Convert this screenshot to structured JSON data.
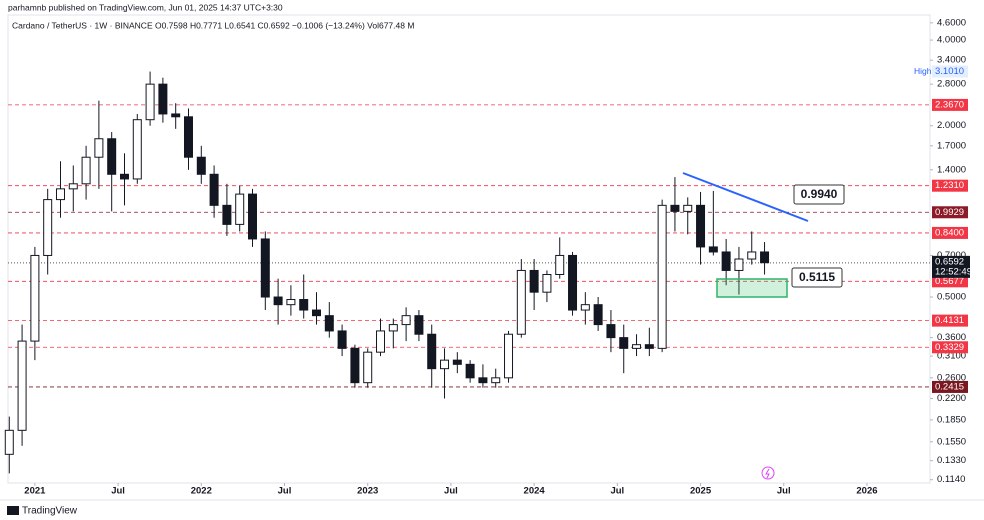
{
  "chart_data": {
    "type": "candlestick",
    "publisher_line": "parhamnb published on TradingView.com, Jun 01, 2025 14:37 UTC+3:30",
    "symbol_line": "Cardano / TetherUS · 1W · BINANCE  O0.7598  H0.7771  L0.6541  C0.6592  −0.1006 (−13.24%)  Vol677.48 M",
    "footer": "TradingView",
    "log_scale": true,
    "up_color": "#ffffff",
    "down_color": "#131722",
    "x": [
      -8,
      -4,
      0,
      4,
      8,
      12,
      16,
      20,
      24,
      28,
      32,
      36,
      40,
      44,
      48,
      52,
      56,
      60,
      64,
      68,
      72,
      76,
      80,
      84,
      88,
      92,
      96,
      100,
      104,
      108,
      112,
      116,
      120,
      124,
      128,
      132,
      136,
      140,
      144,
      148,
      152,
      156,
      160,
      164,
      168,
      172,
      176,
      180,
      184,
      188,
      192,
      196,
      200,
      204,
      208,
      212,
      216,
      220,
      224,
      228
    ],
    "open": [
      0.14,
      0.17,
      0.35,
      0.7,
      1.1,
      1.2,
      1.25,
      1.55,
      1.8,
      1.35,
      1.3,
      2.1,
      2.8,
      2.2,
      2.15,
      1.55,
      1.35,
      1.05,
      0.9,
      1.15,
      0.8,
      0.5,
      0.47,
      0.49,
      0.45,
      0.43,
      0.38,
      0.33,
      0.25,
      0.32,
      0.38,
      0.4,
      0.43,
      0.37,
      0.28,
      0.3,
      0.29,
      0.26,
      0.25,
      0.26,
      0.37,
      0.62,
      0.52,
      0.6,
      0.7,
      0.45,
      0.47,
      0.4,
      0.36,
      0.33,
      0.34,
      0.33,
      1.05,
      1.0,
      1.05,
      0.75,
      0.72,
      0.62,
      0.68,
      0.72
    ],
    "high": [
      0.19,
      0.4,
      0.75,
      1.2,
      1.5,
      1.45,
      1.7,
      2.45,
      1.9,
      1.6,
      2.2,
      3.1,
      2.95,
      2.4,
      2.3,
      1.7,
      1.45,
      1.25,
      1.23,
      1.2,
      0.85,
      0.58,
      0.55,
      0.6,
      0.52,
      0.48,
      0.4,
      0.34,
      0.33,
      0.42,
      0.42,
      0.46,
      0.45,
      0.4,
      0.33,
      0.32,
      0.3,
      0.29,
      0.28,
      0.38,
      0.68,
      0.68,
      0.62,
      0.81,
      0.72,
      0.52,
      0.5,
      0.45,
      0.4,
      0.37,
      0.39,
      1.1,
      1.32,
      1.12,
      1.17,
      1.18,
      0.8,
      0.75,
      0.85,
      0.78
    ],
    "low": [
      0.12,
      0.15,
      0.3,
      0.6,
      0.95,
      1.0,
      1.1,
      1.2,
      1.0,
      1.05,
      1.25,
      2.0,
      2.05,
      1.95,
      1.4,
      1.25,
      0.95,
      0.82,
      0.85,
      0.75,
      0.45,
      0.4,
      0.43,
      0.42,
      0.4,
      0.36,
      0.31,
      0.24,
      0.24,
      0.31,
      0.33,
      0.35,
      0.35,
      0.24,
      0.22,
      0.27,
      0.25,
      0.24,
      0.24,
      0.25,
      0.36,
      0.45,
      0.48,
      0.58,
      0.43,
      0.4,
      0.38,
      0.32,
      0.27,
      0.31,
      0.31,
      0.32,
      0.85,
      0.83,
      0.65,
      0.7,
      0.55,
      0.51,
      0.65,
      0.6
    ],
    "close": [
      0.17,
      0.35,
      0.7,
      1.1,
      1.2,
      1.25,
      1.55,
      1.8,
      1.35,
      1.3,
      2.1,
      2.8,
      2.2,
      2.15,
      1.55,
      1.35,
      1.05,
      0.9,
      1.15,
      0.8,
      0.5,
      0.47,
      0.49,
      0.45,
      0.43,
      0.38,
      0.33,
      0.25,
      0.32,
      0.38,
      0.4,
      0.43,
      0.37,
      0.28,
      0.3,
      0.29,
      0.26,
      0.25,
      0.26,
      0.37,
      0.62,
      0.52,
      0.6,
      0.7,
      0.45,
      0.47,
      0.4,
      0.36,
      0.33,
      0.34,
      0.33,
      1.05,
      1.0,
      1.05,
      0.75,
      0.72,
      0.62,
      0.68,
      0.72,
      0.66
    ],
    "xlim": [
      -8.4,
      279.7
    ],
    "xticks": [
      {
        "value": 0,
        "label": "2021"
      },
      {
        "value": 26,
        "label": "Jul"
      },
      {
        "value": 52,
        "label": "2022"
      },
      {
        "value": 78,
        "label": "Jul"
      },
      {
        "value": 104,
        "label": "2023"
      },
      {
        "value": 130,
        "label": "Jul"
      },
      {
        "value": 156,
        "label": "2024"
      },
      {
        "value": 182,
        "label": "Jul"
      },
      {
        "value": 208,
        "label": "2025"
      },
      {
        "value": 234,
        "label": "Jul"
      },
      {
        "value": 260,
        "label": "2026"
      }
    ],
    "ylim": [
      0.111,
      4.9
    ],
    "yticks": [
      {
        "value": 4.6,
        "label": "4.6000"
      },
      {
        "value": 4,
        "label": "4.0000"
      },
      {
        "value": 3.4,
        "label": "3.4000"
      },
      {
        "value": 2.8,
        "label": "2.8000"
      },
      {
        "value": 2,
        "label": "2.0000"
      },
      {
        "value": 1.7,
        "label": "1.7000"
      },
      {
        "value": 1.4,
        "label": "1.4000"
      },
      {
        "value": 0.7,
        "label": "0.7000"
      },
      {
        "value": 0.5,
        "label": "0.5000"
      },
      {
        "value": 0.36,
        "label": "0.3600"
      },
      {
        "value": 0.31,
        "label": "0.3100"
      },
      {
        "value": 0.26,
        "label": "0.2600"
      },
      {
        "value": 0.22,
        "label": "0.2200"
      },
      {
        "value": 0.185,
        "label": "0.1850"
      },
      {
        "value": 0.155,
        "label": "0.1550"
      },
      {
        "value": 0.133,
        "label": "0.1330"
      },
      {
        "value": 0.114,
        "label": "0.1140"
      }
    ],
    "levels": [
      {
        "value": 2.367,
        "label": "2.3670",
        "color": "#f23645"
      },
      {
        "value": 1.231,
        "label": "1.2310",
        "color": "#f23645"
      },
      {
        "value": 0.9929,
        "label": "0.9929",
        "color": "#8c1a27"
      },
      {
        "value": 0.84,
        "label": "0.8400",
        "color": "#f23645"
      },
      {
        "value": 0.5677,
        "label": "0.5677",
        "color": "#f23645"
      },
      {
        "value": 0.4131,
        "label": "0.4131",
        "color": "#f23645"
      },
      {
        "value": 0.3329,
        "label": "0.3329",
        "color": "#f23645"
      },
      {
        "value": 0.2415,
        "label": "0.2415",
        "color": "#7a1820"
      }
    ],
    "current_price": {
      "value": 0.6592,
      "countdown": "12:52:49"
    },
    "high_marker": {
      "label": "High",
      "value": 3.101,
      "value_label": "3.1010"
    },
    "callouts": [
      "0.9940",
      "0.5115"
    ]
  }
}
